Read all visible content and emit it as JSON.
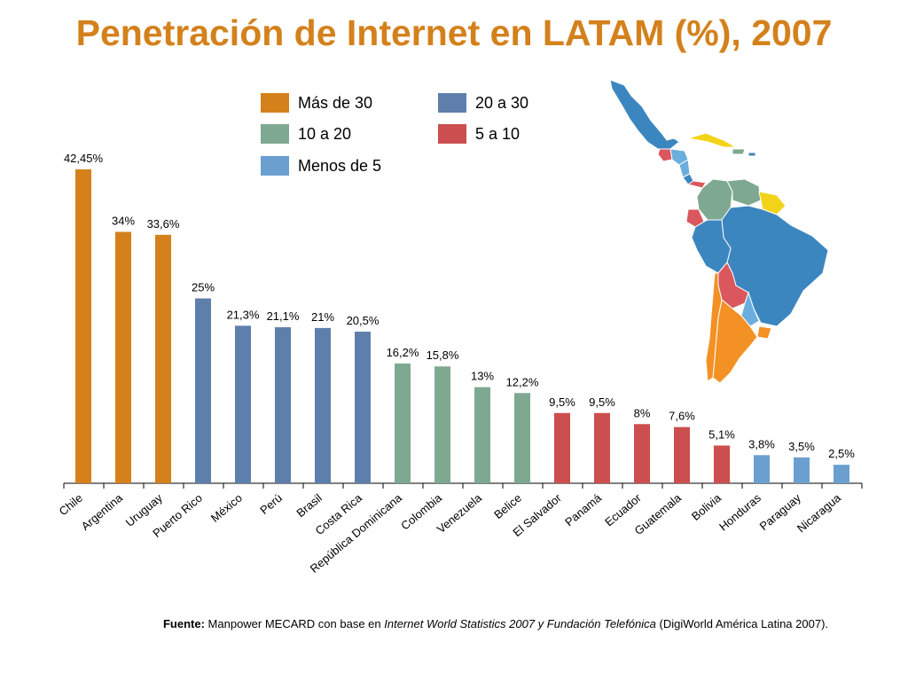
{
  "title": "Penetración de Internet en LATAM (%), 2007",
  "legend": [
    {
      "label": "Más de 30",
      "color": "#d4811c"
    },
    {
      "label": "20 a 30",
      "color": "#5e7fac"
    },
    {
      "label": "10 a 20",
      "color": "#7fa891"
    },
    {
      "label": "5 a 10",
      "color": "#cc4e4e"
    },
    {
      "label": "Menos de 5",
      "color": "#6a9fd0"
    }
  ],
  "source": {
    "label": "Fuente:",
    "text1": " Manpower MECARD con base en ",
    "italic": "Internet World Statistics 2007 y Fundación Telefónica",
    "text2": " (DigiWorld América Latina 2007)."
  },
  "map": {
    "icon": "latin-america-map-icon",
    "colors": {
      "orange": "#f39124",
      "blue": "#3c86c0",
      "green": "#7fa891",
      "red": "#d9575d",
      "light_blue": "#6aaede",
      "yellow": "#f2d317"
    }
  },
  "chart_data": {
    "type": "bar",
    "title": "Penetración de Internet en LATAM (%), 2007",
    "xlabel": "",
    "ylabel": "",
    "ylim": [
      0,
      50
    ],
    "grid": false,
    "legend_position": "top-center",
    "categories": [
      "Chile",
      "Argentina",
      "Uruguay",
      "Puerto Rico",
      "México",
      "Perú",
      "Brasil",
      "Costa Rica",
      "República Dominicana",
      "Colombia",
      "Venezuela",
      "Belice",
      "El Salvador",
      "Panamá",
      "Ecuador",
      "Guatemala",
      "Bolivia",
      "Honduras",
      "Paraguay",
      "Nicaragua"
    ],
    "values": [
      42.45,
      34,
      33.6,
      25,
      21.3,
      21.1,
      21,
      20.5,
      16.2,
      15.8,
      13,
      12.2,
      9.5,
      9.5,
      8,
      7.6,
      5.1,
      3.8,
      3.5,
      2.5
    ],
    "value_labels": [
      "42,45%",
      "34%",
      "33,6%",
      "25%",
      "21,3%",
      "21,1%",
      "21%",
      "20,5%",
      "16,2%",
      "15,8%",
      "13%",
      "12,2%",
      "9,5%",
      "9,5%",
      "8%",
      "7,6%",
      "5,1%",
      "3,8%",
      "3,5%",
      "2,5%"
    ],
    "bar_groups": [
      "Más de 30",
      "Más de 30",
      "Más de 30",
      "20 a 30",
      "20 a 30",
      "20 a 30",
      "20 a 30",
      "20 a 30",
      "10 a 20",
      "10 a 20",
      "10 a 20",
      "10 a 20",
      "5 a 10",
      "5 a 10",
      "5 a 10",
      "5 a 10",
      "5 a 10",
      "Menos de 5",
      "Menos de 5",
      "Menos de 5"
    ]
  }
}
